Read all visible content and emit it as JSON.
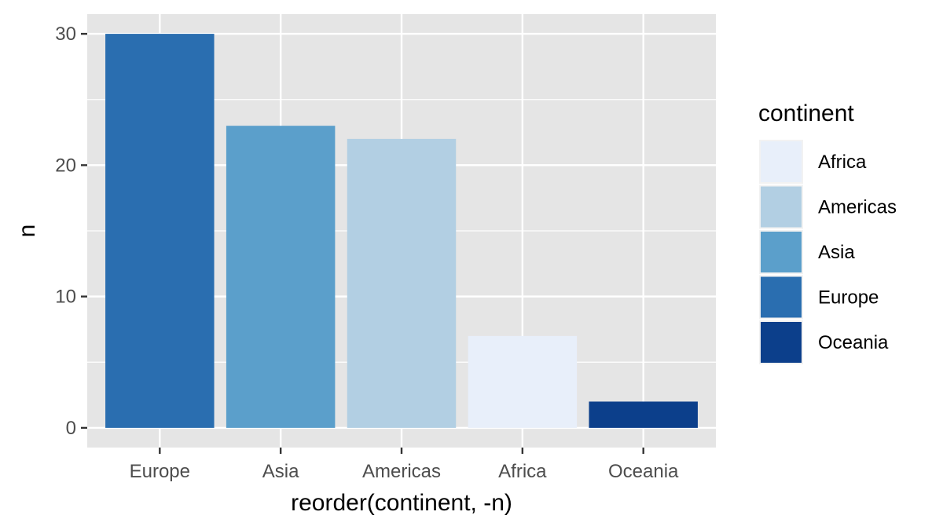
{
  "chart_data": {
    "type": "bar",
    "categories": [
      "Europe",
      "Asia",
      "Americas",
      "Africa",
      "Oceania"
    ],
    "values": [
      30,
      23,
      22,
      7,
      2
    ],
    "xlabel": "reorder(continent, -n)",
    "ylabel": "n",
    "ylim": [
      -1.5,
      31.5
    ],
    "yticks": [
      0,
      10,
      20,
      30
    ],
    "grid": true,
    "bar_colors": {
      "Africa": "#e8effa",
      "Americas": "#b2cfe3",
      "Asia": "#5b9fcb",
      "Europe": "#2a6eb0",
      "Oceania": "#0c3f8b"
    },
    "legend": {
      "title": "continent",
      "position": "right",
      "entries": [
        {
          "label": "Africa",
          "color": "#e8effa"
        },
        {
          "label": "Americas",
          "color": "#b2cfe3"
        },
        {
          "label": "Asia",
          "color": "#5b9fcb"
        },
        {
          "label": "Europe",
          "color": "#2a6eb0"
        },
        {
          "label": "Oceania",
          "color": "#0c3f8b"
        }
      ]
    },
    "panel_background": "#e5e5e5",
    "grid_color": "#ffffff"
  }
}
